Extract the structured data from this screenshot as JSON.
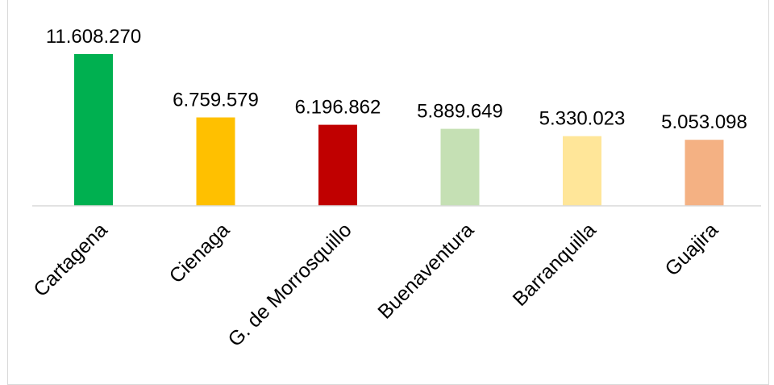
{
  "chart_data": {
    "type": "bar",
    "title": "",
    "xlabel": "",
    "ylabel": "",
    "categories": [
      "Cartagena",
      "Cienaga",
      "G. de Morrosquillo",
      "Buenaventura",
      "Barranquilla",
      "Guajira"
    ],
    "values": [
      11608270,
      6759579,
      6196862,
      5889649,
      5330023,
      5053098
    ],
    "value_labels": [
      "11.608.270",
      "6.759.579",
      "6.196.862",
      "5.889.649",
      "5.330.023",
      "5.053.098"
    ],
    "colors": [
      "#00b050",
      "#ffc000",
      "#c00000",
      "#c5e0b4",
      "#ffe699",
      "#f4b183"
    ],
    "ylim": [
      0,
      11608270
    ],
    "grid": false,
    "legend": "none"
  }
}
